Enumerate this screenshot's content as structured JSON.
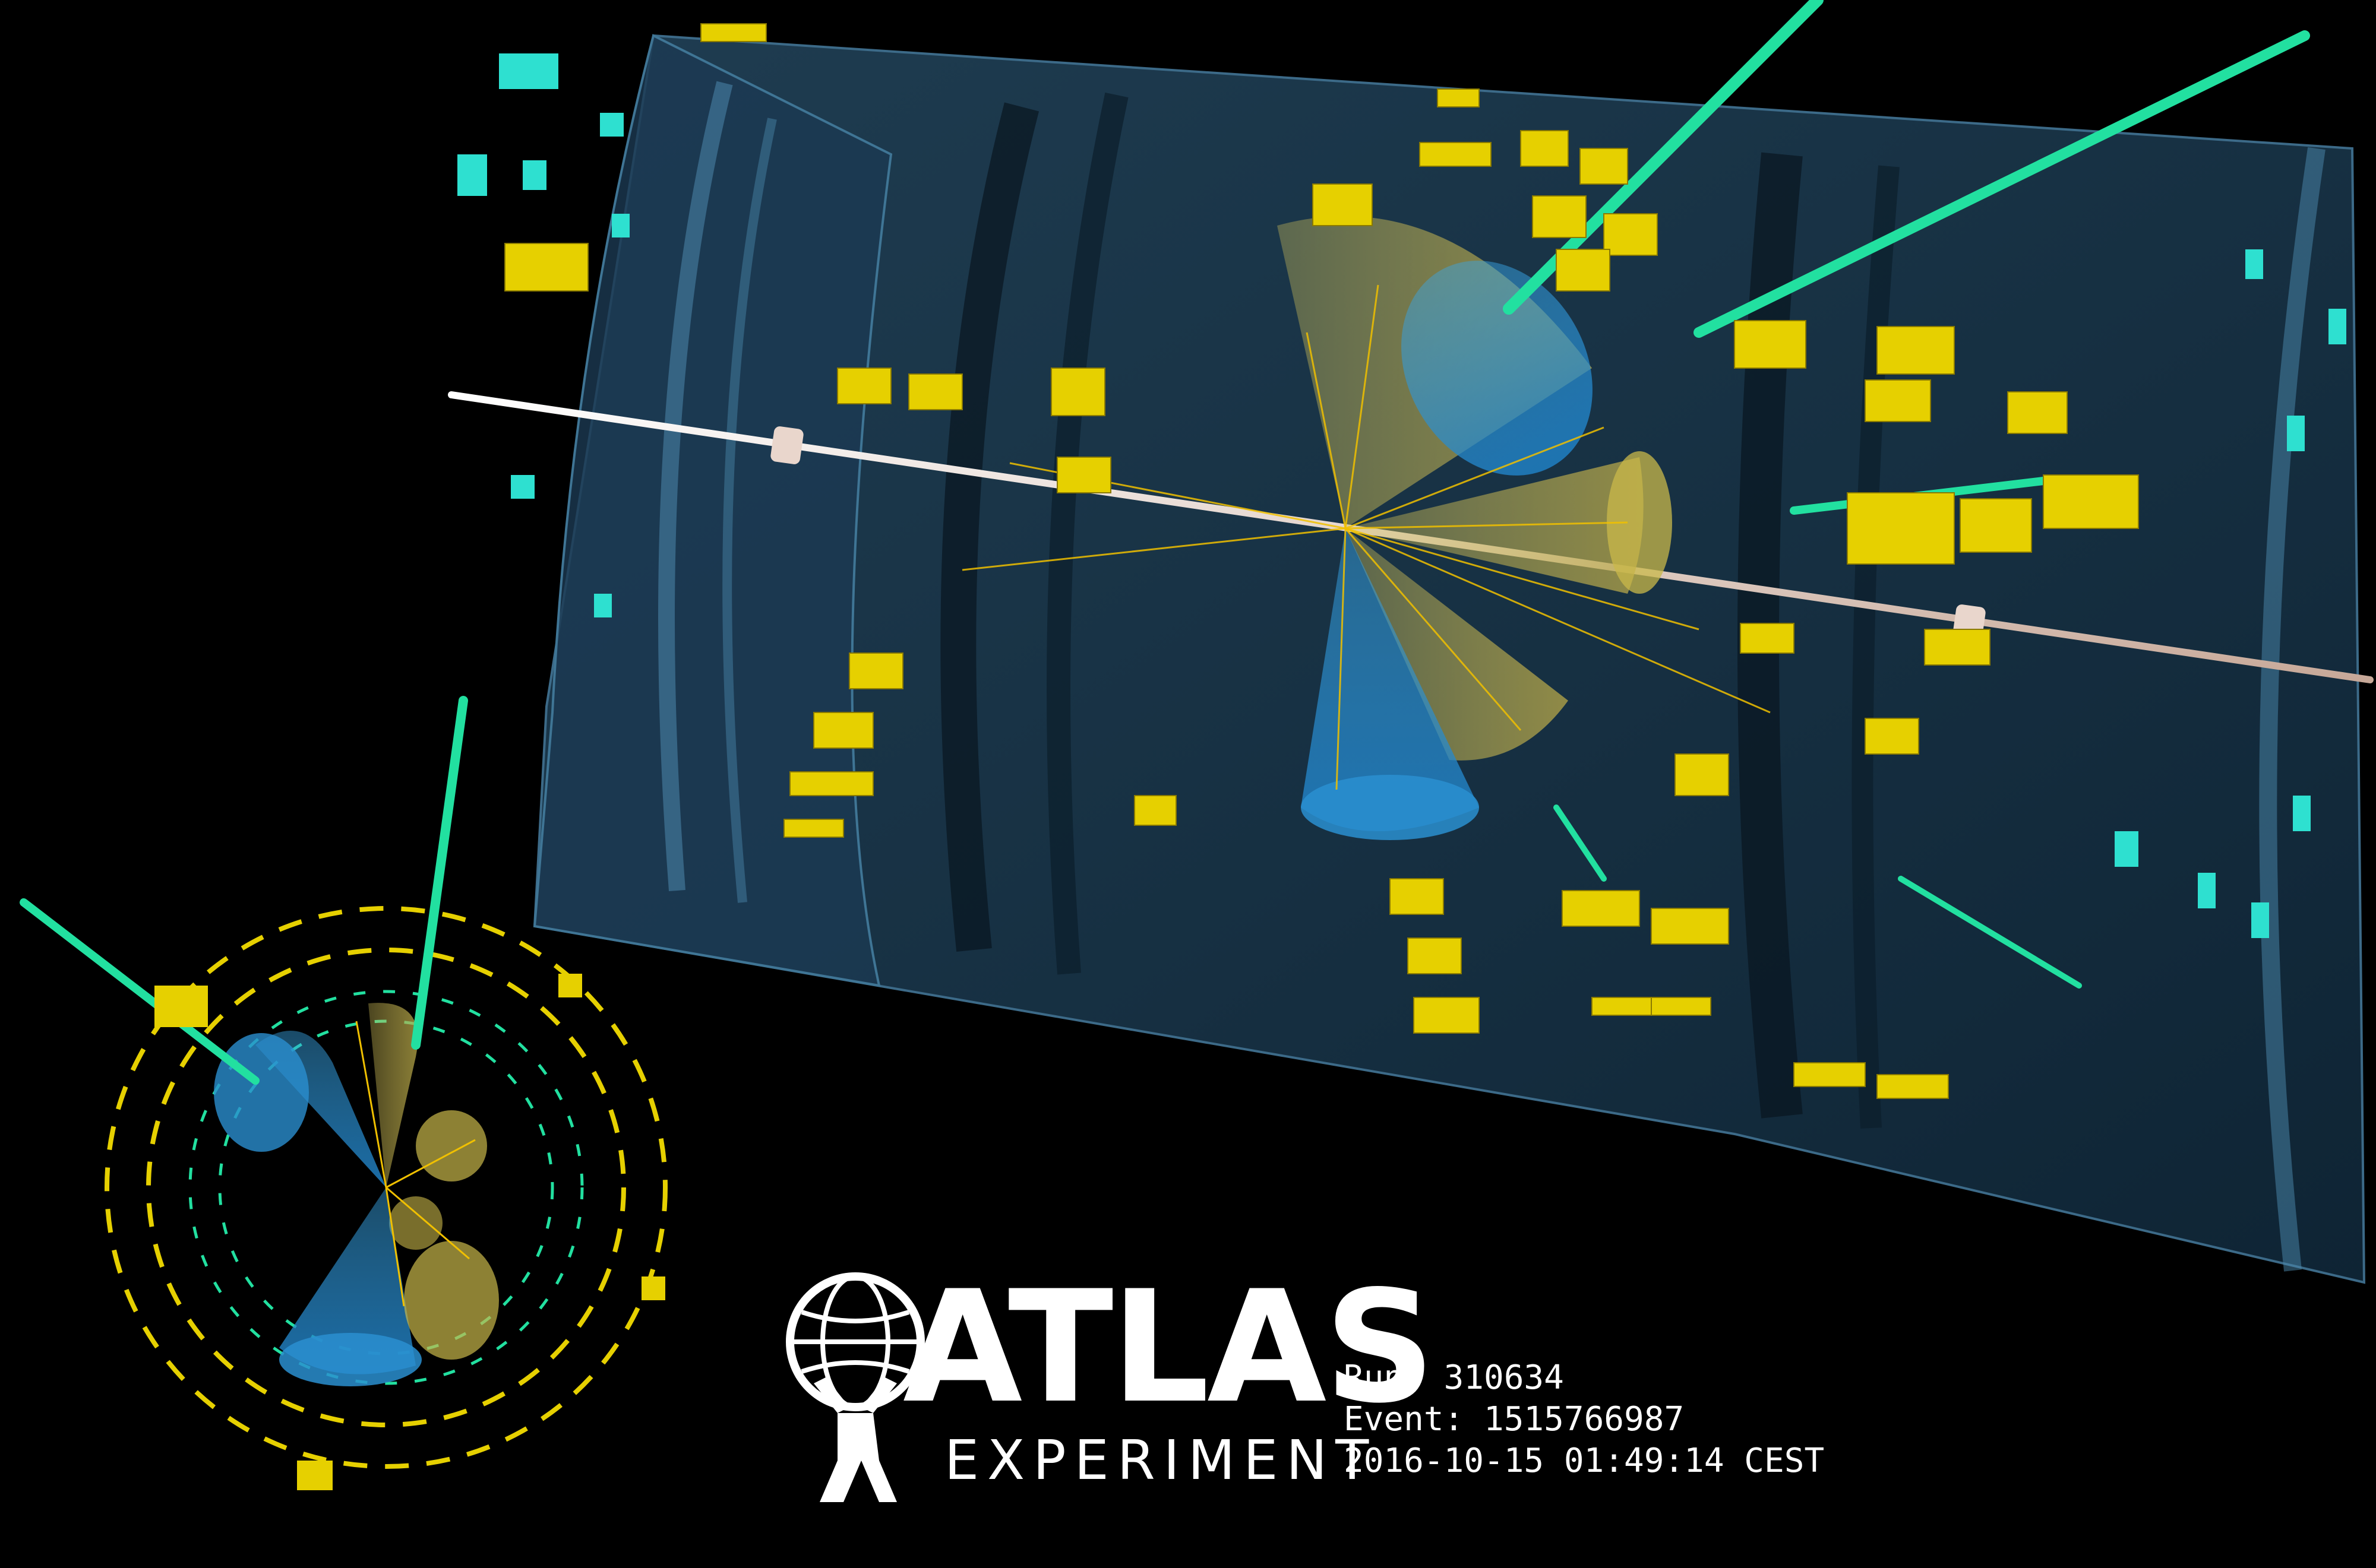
{
  "logo": {
    "title": "ATLAS",
    "subtitle": "EXPERIMENT"
  },
  "event_info": {
    "run": "Run: 310634",
    "event": "Event: 1515766987",
    "datetime": "2016-10-15 01:49:14 CEST"
  },
  "colors": {
    "background": "#000000",
    "detector": "#1d3a52",
    "calorimeter": "#e8d200",
    "track": "#24e0a0",
    "jet_cone_blue": "#2a8fd0",
    "jet_cone_yellow": "#c9b84a",
    "beam_pipe": "#f2d8c8"
  }
}
